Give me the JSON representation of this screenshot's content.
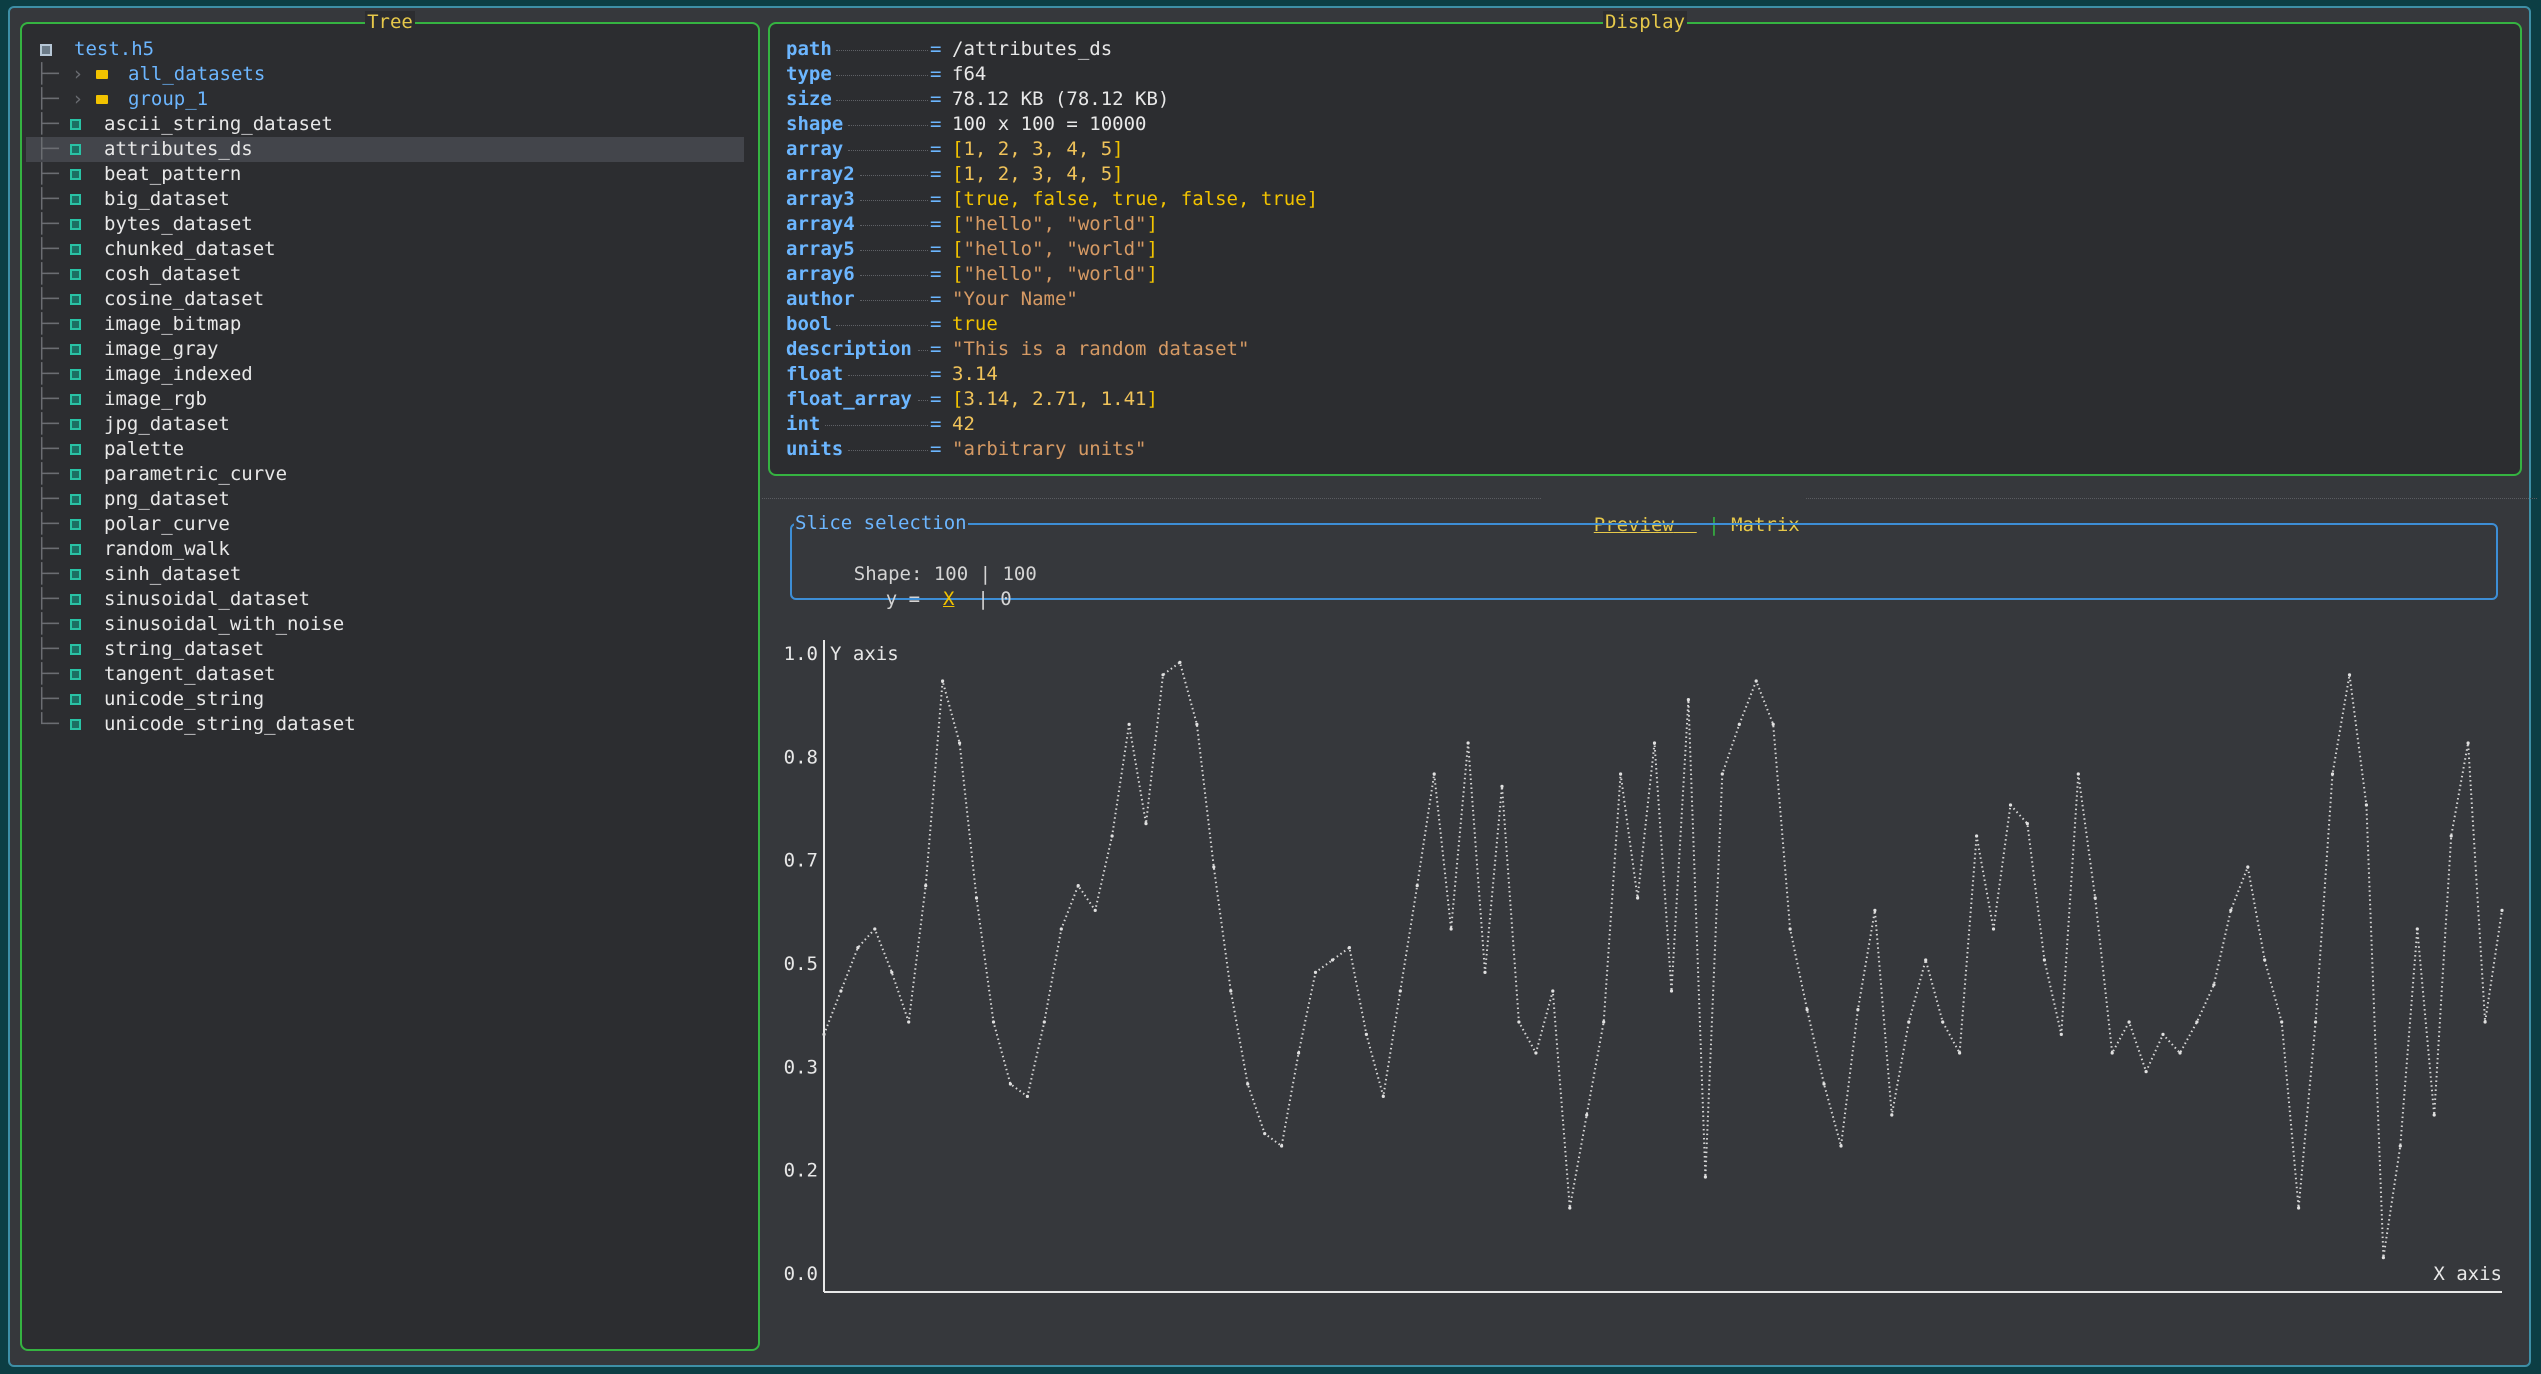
{
  "tree": {
    "title": "Tree",
    "root": "test.h5",
    "groups": [
      "all_datasets",
      "group_1"
    ],
    "datasets": [
      "ascii_string_dataset",
      "attributes_ds",
      "beat_pattern",
      "big_dataset",
      "bytes_dataset",
      "chunked_dataset",
      "cosh_dataset",
      "cosine_dataset",
      "image_bitmap",
      "image_gray",
      "image_indexed",
      "image_rgb",
      "jpg_dataset",
      "palette",
      "parametric_curve",
      "png_dataset",
      "polar_curve",
      "random_walk",
      "sinh_dataset",
      "sinusoidal_dataset",
      "sinusoidal_with_noise",
      "string_dataset",
      "tangent_dataset",
      "unicode_string",
      "unicode_string_dataset"
    ],
    "selected": "attributes_ds"
  },
  "display": {
    "title": "Display",
    "attrs": [
      {
        "key": "path",
        "value": "/attributes_ds",
        "kind": "plain"
      },
      {
        "key": "type",
        "value": "f64",
        "kind": "plain"
      },
      {
        "key": "size",
        "value": "78.12 KB (78.12 KB)",
        "kind": "plain"
      },
      {
        "key": "shape",
        "value": "100 x 100 = 10000",
        "kind": "plain"
      },
      {
        "key": "array",
        "value": "[1, 2, 3, 4, 5]",
        "kind": "array"
      },
      {
        "key": "array2",
        "value": "[1, 2, 3, 4, 5]",
        "kind": "array"
      },
      {
        "key": "array3",
        "value": "[true, false, true, false, true]",
        "kind": "bool"
      },
      {
        "key": "array4",
        "value": "[\"hello\", \"world\"]",
        "kind": "strarray"
      },
      {
        "key": "array5",
        "value": "[\"hello\", \"world\"]",
        "kind": "strarray"
      },
      {
        "key": "array6",
        "value": "[\"hello\", \"world\"]",
        "kind": "strarray"
      },
      {
        "key": "author",
        "value": "\"Your Name\"",
        "kind": "str"
      },
      {
        "key": "bool",
        "value": "true",
        "kind": "bool"
      },
      {
        "key": "description",
        "value": "\"This is a random dataset\"",
        "kind": "str"
      },
      {
        "key": "float",
        "value": "3.14",
        "kind": "num"
      },
      {
        "key": "float_array",
        "value": "[3.14, 2.71, 1.41]",
        "kind": "array"
      },
      {
        "key": "int",
        "value": "42",
        "kind": "num"
      },
      {
        "key": "units",
        "value": "\"arbitrary units\"",
        "kind": "str"
      }
    ]
  },
  "tabs": {
    "preview": "Preview",
    "separator": "|",
    "matrix": "Matrix"
  },
  "slice": {
    "title": "Slice selection",
    "shape_label": "Shape:",
    "shape_values": "100 | 100",
    "y_label": "y =",
    "y_selected": "X",
    "y_rest": "| 0"
  },
  "colors": {
    "accent": "#e6c84a",
    "key": "#6cb6ff",
    "border": "#35b341",
    "dataset_icon": "#29c2a5",
    "folder_icon": "#f2c300"
  },
  "chart_data": {
    "type": "line",
    "xlabel": "X axis",
    "ylabel": "Y axis",
    "xlim": [
      0,
      100
    ],
    "ylim": [
      0,
      1
    ],
    "x_ticks": [
      "0.0",
      "5.3",
      "10.5",
      "15.8",
      "21.1",
      "26.3",
      "31.6",
      "36.8",
      "42.1",
      "47.4",
      "52.6",
      "57.9",
      "63.2",
      "68.4",
      "73.7",
      "78.9",
      "84.2",
      "89.5",
      "94.7",
      "100.0"
    ],
    "y_ticks": [
      "1.0",
      "0.8",
      "0.7",
      "0.5",
      "0.3",
      "0.2",
      "0.0"
    ],
    "series": [
      {
        "values": [
          0.38,
          0.45,
          0.52,
          0.55,
          0.48,
          0.4,
          0.62,
          0.95,
          0.85,
          0.6,
          0.4,
          0.3,
          0.28,
          0.4,
          0.55,
          0.62,
          0.58,
          0.7,
          0.88,
          0.72,
          0.96,
          0.98,
          0.88,
          0.65,
          0.45,
          0.3,
          0.22,
          0.2,
          0.35,
          0.48,
          0.5,
          0.52,
          0.38,
          0.28,
          0.45,
          0.62,
          0.8,
          0.55,
          0.85,
          0.48,
          0.78,
          0.4,
          0.35,
          0.45,
          0.1,
          0.25,
          0.4,
          0.8,
          0.6,
          0.85,
          0.45,
          0.92,
          0.15,
          0.8,
          0.88,
          0.95,
          0.88,
          0.55,
          0.42,
          0.3,
          0.2,
          0.42,
          0.58,
          0.25,
          0.4,
          0.5,
          0.4,
          0.35,
          0.7,
          0.55,
          0.75,
          0.72,
          0.5,
          0.38,
          0.8,
          0.6,
          0.35,
          0.4,
          0.32,
          0.38,
          0.35,
          0.4,
          0.46,
          0.58,
          0.65,
          0.5,
          0.4,
          0.1,
          0.4,
          0.8,
          0.96,
          0.75,
          0.02,
          0.2,
          0.55,
          0.25,
          0.7,
          0.85,
          0.4,
          0.58
        ]
      }
    ]
  }
}
